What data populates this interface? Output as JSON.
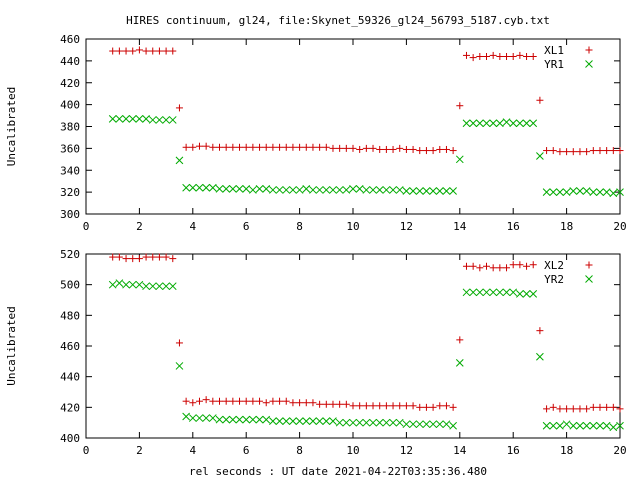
{
  "chart_data": {
    "title": "HIRES continuum, gl24, file:Skynet_59326_gl24_56793_5187.cyb.txt",
    "xlabel": "rel seconds : UT date 2021-04-22T03:35:36.480",
    "panels": [
      {
        "type": "scatter",
        "ylabel": "Uncalibrated",
        "xlim": [
          0,
          20
        ],
        "ylim": [
          300,
          460
        ],
        "xticks": [
          0,
          2,
          4,
          6,
          8,
          10,
          12,
          14,
          16,
          18,
          20
        ],
        "yticks": [
          300,
          320,
          340,
          360,
          380,
          400,
          420,
          440,
          460
        ],
        "legend_position": "top-right",
        "series": [
          {
            "name": "XL1",
            "marker": "plus",
            "color": "#cc0000",
            "x": [
              1.0,
              1.25,
              1.5,
              1.75,
              2.0,
              2.25,
              2.5,
              2.75,
              3.0,
              3.25,
              3.5,
              3.75,
              4.0,
              4.25,
              4.5,
              4.75,
              5.0,
              5.25,
              5.5,
              5.75,
              6.0,
              6.25,
              6.5,
              6.75,
              7.0,
              7.25,
              7.5,
              7.75,
              8.0,
              8.25,
              8.5,
              8.75,
              9.0,
              9.25,
              9.5,
              9.75,
              10.0,
              10.25,
              10.5,
              10.75,
              11.0,
              11.25,
              11.5,
              11.75,
              12.0,
              12.25,
              12.5,
              12.75,
              13.0,
              13.25,
              13.5,
              13.75,
              14.0,
              14.25,
              14.5,
              14.75,
              15.0,
              15.25,
              15.5,
              15.75,
              16.0,
              16.25,
              16.5,
              16.75,
              17.0,
              17.25,
              17.5,
              17.75,
              18.0,
              18.25,
              18.5,
              18.75,
              19.0,
              19.25,
              19.5,
              19.75,
              20.0
            ],
            "y": [
              449,
              449,
              449,
              449,
              450,
              449,
              449,
              449,
              449,
              449,
              397,
              361,
              361,
              362,
              362,
              361,
              361,
              361,
              361,
              361,
              361,
              361,
              361,
              361,
              361,
              361,
              361,
              361,
              361,
              361,
              361,
              361,
              361,
              360,
              360,
              360,
              360,
              359,
              360,
              360,
              359,
              359,
              359,
              360,
              359,
              359,
              358,
              358,
              358,
              359,
              359,
              358,
              399,
              445,
              443,
              444,
              444,
              445,
              444,
              444,
              444,
              445,
              444,
              444,
              404,
              358,
              358,
              357,
              357,
              357,
              357,
              357,
              358,
              358,
              358,
              358,
              358
            ]
          },
          {
            "name": "YR1",
            "marker": "cross",
            "color": "#00aa00",
            "x": [
              1.0,
              1.25,
              1.5,
              1.75,
              2.0,
              2.25,
              2.5,
              2.75,
              3.0,
              3.25,
              3.5,
              3.75,
              4.0,
              4.25,
              4.5,
              4.75,
              5.0,
              5.25,
              5.5,
              5.75,
              6.0,
              6.25,
              6.5,
              6.75,
              7.0,
              7.25,
              7.5,
              7.75,
              8.0,
              8.25,
              8.5,
              8.75,
              9.0,
              9.25,
              9.5,
              9.75,
              10.0,
              10.25,
              10.5,
              10.75,
              11.0,
              11.25,
              11.5,
              11.75,
              12.0,
              12.25,
              12.5,
              12.75,
              13.0,
              13.25,
              13.5,
              13.75,
              14.0,
              14.25,
              14.5,
              14.75,
              15.0,
              15.25,
              15.5,
              15.75,
              16.0,
              16.25,
              16.5,
              16.75,
              17.0,
              17.25,
              17.5,
              17.75,
              18.0,
              18.25,
              18.5,
              18.75,
              19.0,
              19.25,
              19.5,
              19.75,
              20.0
            ],
            "y": [
              387,
              387,
              387,
              387,
              387,
              387,
              386,
              386,
              386,
              386,
              349,
              324,
              324,
              324,
              324,
              324,
              323,
              323,
              323,
              323,
              323,
              322,
              323,
              323,
              322,
              322,
              322,
              322,
              322,
              323,
              322,
              322,
              322,
              322,
              322,
              322,
              323,
              323,
              322,
              322,
              322,
              322,
              322,
              322,
              321,
              321,
              321,
              321,
              321,
              321,
              321,
              321,
              350,
              383,
              383,
              383,
              383,
              383,
              383,
              384,
              383,
              383,
              383,
              383,
              353,
              320,
              320,
              320,
              320,
              321,
              321,
              321,
              320,
              320,
              320,
              319,
              320
            ]
          }
        ]
      },
      {
        "type": "scatter",
        "ylabel": "Uncalibrated",
        "xlim": [
          0,
          20
        ],
        "ylim": [
          400,
          520
        ],
        "xticks": [
          0,
          2,
          4,
          6,
          8,
          10,
          12,
          14,
          16,
          18,
          20
        ],
        "yticks": [
          400,
          420,
          440,
          460,
          480,
          500,
          520
        ],
        "legend_position": "top-right",
        "series": [
          {
            "name": "XL2",
            "marker": "plus",
            "color": "#cc0000",
            "x": [
              1.0,
              1.25,
              1.5,
              1.75,
              2.0,
              2.25,
              2.5,
              2.75,
              3.0,
              3.25,
              3.5,
              3.75,
              4.0,
              4.25,
              4.5,
              4.75,
              5.0,
              5.25,
              5.5,
              5.75,
              6.0,
              6.25,
              6.5,
              6.75,
              7.0,
              7.25,
              7.5,
              7.75,
              8.0,
              8.25,
              8.5,
              8.75,
              9.0,
              9.25,
              9.5,
              9.75,
              10.0,
              10.25,
              10.5,
              10.75,
              11.0,
              11.25,
              11.5,
              11.75,
              12.0,
              12.25,
              12.5,
              12.75,
              13.0,
              13.25,
              13.5,
              13.75,
              14.0,
              14.25,
              14.5,
              14.75,
              15.0,
              15.25,
              15.5,
              15.75,
              16.0,
              16.25,
              16.5,
              16.75,
              17.0,
              17.25,
              17.5,
              17.75,
              18.0,
              18.25,
              18.5,
              18.75,
              19.0,
              19.25,
              19.5,
              19.75,
              20.0
            ],
            "y": [
              518,
              518,
              517,
              517,
              517,
              518,
              518,
              518,
              518,
              517,
              462,
              424,
              423,
              424,
              425,
              424,
              424,
              424,
              424,
              424,
              424,
              424,
              424,
              423,
              424,
              424,
              424,
              423,
              423,
              423,
              423,
              422,
              422,
              422,
              422,
              422,
              421,
              421,
              421,
              421,
              421,
              421,
              421,
              421,
              421,
              421,
              420,
              420,
              420,
              421,
              421,
              420,
              464,
              512,
              512,
              511,
              512,
              511,
              511,
              511,
              513,
              513,
              512,
              513,
              470,
              419,
              420,
              419,
              419,
              419,
              419,
              419,
              420,
              420,
              420,
              420,
              419
            ]
          },
          {
            "name": "YR2",
            "marker": "cross",
            "color": "#00aa00",
            "x": [
              1.0,
              1.25,
              1.5,
              1.75,
              2.0,
              2.25,
              2.5,
              2.75,
              3.0,
              3.25,
              3.5,
              3.75,
              4.0,
              4.25,
              4.5,
              4.75,
              5.0,
              5.25,
              5.5,
              5.75,
              6.0,
              6.25,
              6.5,
              6.75,
              7.0,
              7.25,
              7.5,
              7.75,
              8.0,
              8.25,
              8.5,
              8.75,
              9.0,
              9.25,
              9.5,
              9.75,
              10.0,
              10.25,
              10.5,
              10.75,
              11.0,
              11.25,
              11.5,
              11.75,
              12.0,
              12.25,
              12.5,
              12.75,
              13.0,
              13.25,
              13.5,
              13.75,
              14.0,
              14.25,
              14.5,
              14.75,
              15.0,
              15.25,
              15.5,
              15.75,
              16.0,
              16.25,
              16.5,
              16.75,
              17.0,
              17.25,
              17.5,
              17.75,
              18.0,
              18.25,
              18.5,
              18.75,
              19.0,
              19.25,
              19.5,
              19.75,
              20.0
            ],
            "y": [
              500,
              501,
              500,
              500,
              500,
              499,
              499,
              499,
              499,
              499,
              447,
              414,
              413,
              413,
              413,
              413,
              412,
              412,
              412,
              412,
              412,
              412,
              412,
              412,
              411,
              411,
              411,
              411,
              411,
              411,
              411,
              411,
              411,
              411,
              410,
              410,
              410,
              410,
              410,
              410,
              410,
              410,
              410,
              410,
              409,
              409,
              409,
              409,
              409,
              409,
              409,
              408,
              449,
              495,
              495,
              495,
              495,
              495,
              495,
              495,
              495,
              494,
              494,
              494,
              453,
              408,
              408,
              408,
              409,
              408,
              408,
              408,
              408,
              408,
              408,
              407,
              408
            ]
          }
        ]
      }
    ]
  }
}
